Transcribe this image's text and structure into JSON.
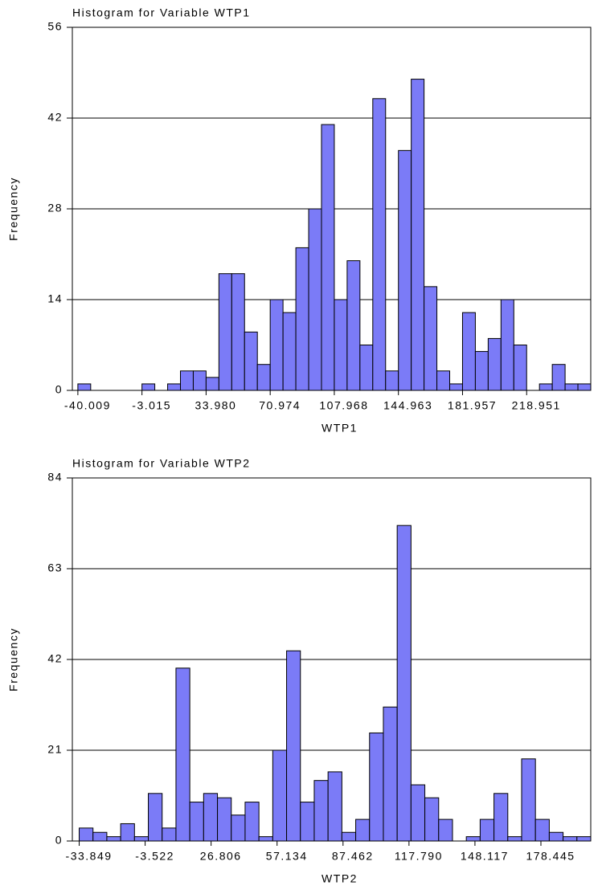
{
  "chart_data": [
    {
      "type": "histogram",
      "title": "Histogram for Variable WTP1",
      "x_label": "WTP1",
      "y_label": "Frequency",
      "color": "#7b7bf7",
      "grid": true,
      "bins": [
        -40.009,
        -32.61,
        -25.211,
        -17.812,
        -10.413,
        -3.015,
        4.384,
        11.783,
        19.182,
        26.581,
        33.98,
        41.379,
        48.778,
        56.177,
        63.576,
        70.974,
        78.373,
        85.772,
        93.171,
        100.57,
        107.968,
        115.367,
        122.766,
        130.165,
        137.564,
        144.963,
        152.362,
        159.761,
        167.16,
        174.559,
        181.957,
        189.356,
        196.755,
        204.154,
        211.553,
        218.951,
        226.35,
        233.749,
        241.148,
        248.547,
        255.946
      ],
      "values": [
        1,
        0,
        0,
        0,
        0,
        1,
        0,
        1,
        3,
        3,
        2,
        18,
        18,
        9,
        4,
        14,
        12,
        22,
        28,
        41,
        14,
        20,
        7,
        45,
        3,
        37,
        48,
        16,
        3,
        1,
        12,
        6,
        8,
        14,
        7,
        0,
        1,
        4,
        1,
        1
      ],
      "xlim": [
        -43.2,
        255.946
      ],
      "xticks": [
        -40.009,
        -3.015,
        {
          "value": 33.98,
          "label": "33.980"
        },
        70.974,
        107.968,
        144.963,
        181.957,
        218.951
      ],
      "ylim": [
        0,
        56
      ],
      "yticks": [
        0,
        14,
        28,
        42,
        56
      ]
    },
    {
      "type": "histogram",
      "title": "Histogram for Variable WTP2",
      "x_label": "WTP2",
      "y_label": "Frequency",
      "color": "#7b7bf7",
      "grid": true,
      "bins": [
        -33.849,
        -27.492,
        -21.135,
        -14.778,
        -8.421,
        -2.064,
        4.293,
        10.65,
        17.007,
        23.364,
        29.721,
        36.078,
        42.435,
        48.792,
        55.149,
        61.506,
        67.863,
        74.22,
        80.577,
        86.934,
        93.291,
        99.648,
        106.005,
        112.362,
        118.719,
        125.076,
        131.433,
        137.79,
        144.147,
        150.504,
        156.861,
        163.218,
        169.575,
        175.932,
        182.289,
        188.646,
        195.003,
        201.36
      ],
      "values": [
        3,
        2,
        1,
        4,
        1,
        11,
        3,
        40,
        9,
        11,
        10,
        6,
        9,
        1,
        21,
        44,
        9,
        14,
        16,
        2,
        5,
        25,
        31,
        73,
        13,
        10,
        5,
        0,
        1,
        5,
        11,
        1,
        19,
        5,
        2,
        1,
        1
      ],
      "xlim": [
        -37.0,
        201.36
      ],
      "xticks": [
        -33.849,
        -3.522,
        26.806,
        57.134,
        87.462,
        {
          "value": 117.79,
          "label": "117.790"
        },
        148.117,
        178.445
      ],
      "ylim": [
        0,
        84
      ],
      "yticks": [
        0,
        21,
        42,
        63,
        84
      ]
    }
  ]
}
